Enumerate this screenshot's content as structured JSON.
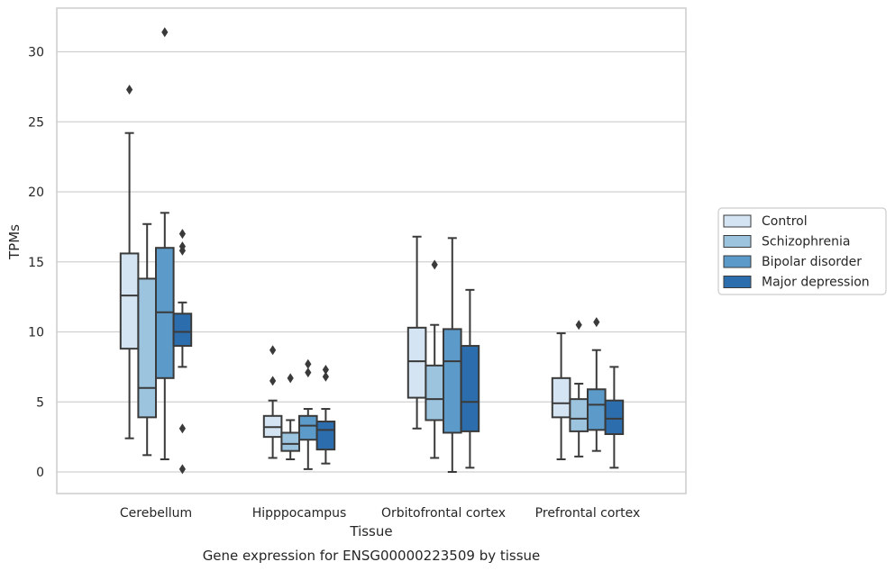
{
  "chart_data": {
    "type": "box",
    "caption": "Gene expression for ENSG00000223509 by tissue",
    "xlabel": "Tissue",
    "ylabel": "TPMs",
    "ylim": [
      -1.5,
      33
    ],
    "yticks": [
      0,
      5,
      10,
      15,
      20,
      25,
      30
    ],
    "grid": "horizontal",
    "legend_position": "right",
    "categories": [
      "Cerebellum",
      "Hipppocampus",
      "Orbitofrontal cortex",
      "Prefrontal cortex"
    ],
    "series": [
      {
        "name": "Control",
        "color": "#d4e4f2",
        "boxes": [
          {
            "whisker_low": 2.4,
            "q1": 8.8,
            "median": 12.6,
            "q3": 15.6,
            "whisker_high": 24.2,
            "outliers": [
              27.3
            ]
          },
          {
            "whisker_low": 1.0,
            "q1": 2.5,
            "median": 3.2,
            "q3": 4.0,
            "whisker_high": 5.1,
            "outliers": [
              6.5,
              8.7
            ]
          },
          {
            "whisker_low": 3.1,
            "q1": 5.3,
            "median": 7.9,
            "q3": 10.3,
            "whisker_high": 16.8,
            "outliers": []
          },
          {
            "whisker_low": 0.9,
            "q1": 3.9,
            "median": 4.9,
            "q3": 6.7,
            "whisker_high": 9.9,
            "outliers": []
          }
        ]
      },
      {
        "name": "Schizophrenia",
        "color": "#9cc4de",
        "boxes": [
          {
            "whisker_low": 1.2,
            "q1": 3.9,
            "median": 6.0,
            "q3": 13.8,
            "whisker_high": 17.7,
            "outliers": []
          },
          {
            "whisker_low": 0.9,
            "q1": 1.5,
            "median": 2.0,
            "q3": 2.8,
            "whisker_high": 3.7,
            "outliers": [
              6.7
            ]
          },
          {
            "whisker_low": 1.0,
            "q1": 3.7,
            "median": 5.2,
            "q3": 7.6,
            "whisker_high": 10.5,
            "outliers": [
              14.8
            ]
          },
          {
            "whisker_low": 1.1,
            "q1": 2.9,
            "median": 3.8,
            "q3": 5.2,
            "whisker_high": 6.3,
            "outliers": [
              10.5
            ]
          }
        ]
      },
      {
        "name": "Bipolar disorder",
        "color": "#5b9ac9",
        "boxes": [
          {
            "whisker_low": 0.9,
            "q1": 6.7,
            "median": 11.4,
            "q3": 16.0,
            "whisker_high": 18.5,
            "outliers": [
              31.4
            ]
          },
          {
            "whisker_low": 0.2,
            "q1": 2.3,
            "median": 3.3,
            "q3": 4.0,
            "whisker_high": 4.5,
            "outliers": [
              7.1,
              7.7
            ]
          },
          {
            "whisker_low": 0.0,
            "q1": 2.8,
            "median": 7.9,
            "q3": 10.2,
            "whisker_high": 16.7,
            "outliers": []
          },
          {
            "whisker_low": 1.5,
            "q1": 3.0,
            "median": 4.8,
            "q3": 5.9,
            "whisker_high": 8.7,
            "outliers": [
              10.7
            ]
          }
        ]
      },
      {
        "name": "Major depression",
        "color": "#2c6ead",
        "boxes": [
          {
            "whisker_low": 7.5,
            "q1": 9.0,
            "median": 10.0,
            "q3": 11.3,
            "whisker_high": 12.1,
            "outliers": [
              0.2,
              3.1,
              15.8,
              16.1,
              17.0
            ]
          },
          {
            "whisker_low": 0.6,
            "q1": 1.6,
            "median": 3.0,
            "q3": 3.6,
            "whisker_high": 4.5,
            "outliers": [
              6.8,
              7.3
            ]
          },
          {
            "whisker_low": 0.3,
            "q1": 2.9,
            "median": 5.0,
            "q3": 9.0,
            "whisker_high": 13.0,
            "outliers": []
          },
          {
            "whisker_low": 0.3,
            "q1": 2.7,
            "median": 3.8,
            "q3": 5.1,
            "whisker_high": 7.5,
            "outliers": []
          }
        ]
      }
    ]
  }
}
